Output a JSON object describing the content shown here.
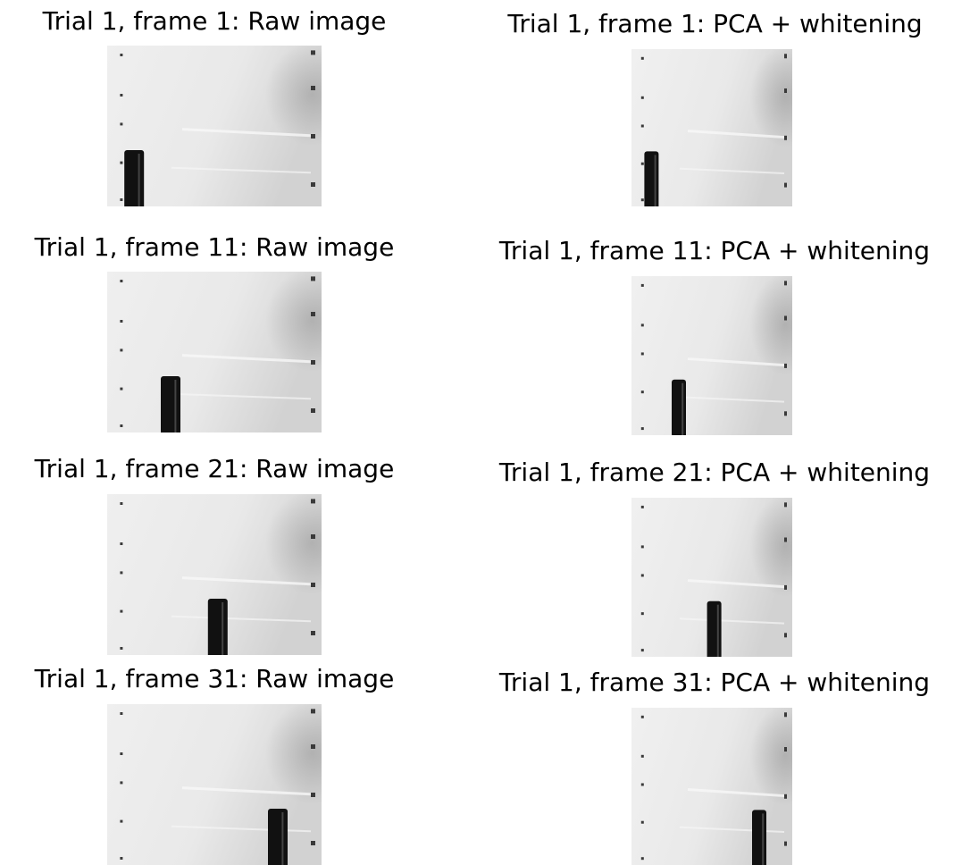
{
  "figure": {
    "rows": [
      {
        "frame": 1,
        "raw_title": "Trial 1, frame 1: Raw image",
        "pca_title": "Trial 1, frame 1: PCA + whitening",
        "object_position": 0.08
      },
      {
        "frame": 11,
        "raw_title": "Trial 1, frame 11: Raw image",
        "pca_title": "Trial 1, frame 11: PCA + whitening",
        "object_position": 0.25
      },
      {
        "frame": 21,
        "raw_title": "Trial 1, frame 21: Raw image",
        "pca_title": "Trial 1, frame 21: PCA + whitening",
        "object_position": 0.47
      },
      {
        "frame": 31,
        "raw_title": "Trial 1, frame 31: Raw image",
        "pca_title": "Trial 1, frame 31: PCA + whitening",
        "object_position": 0.75
      }
    ]
  },
  "colors": {
    "background": "#ffffff",
    "panel_base": "#e6e6e6",
    "object": "#111111",
    "dots": "#3a3a3a"
  }
}
